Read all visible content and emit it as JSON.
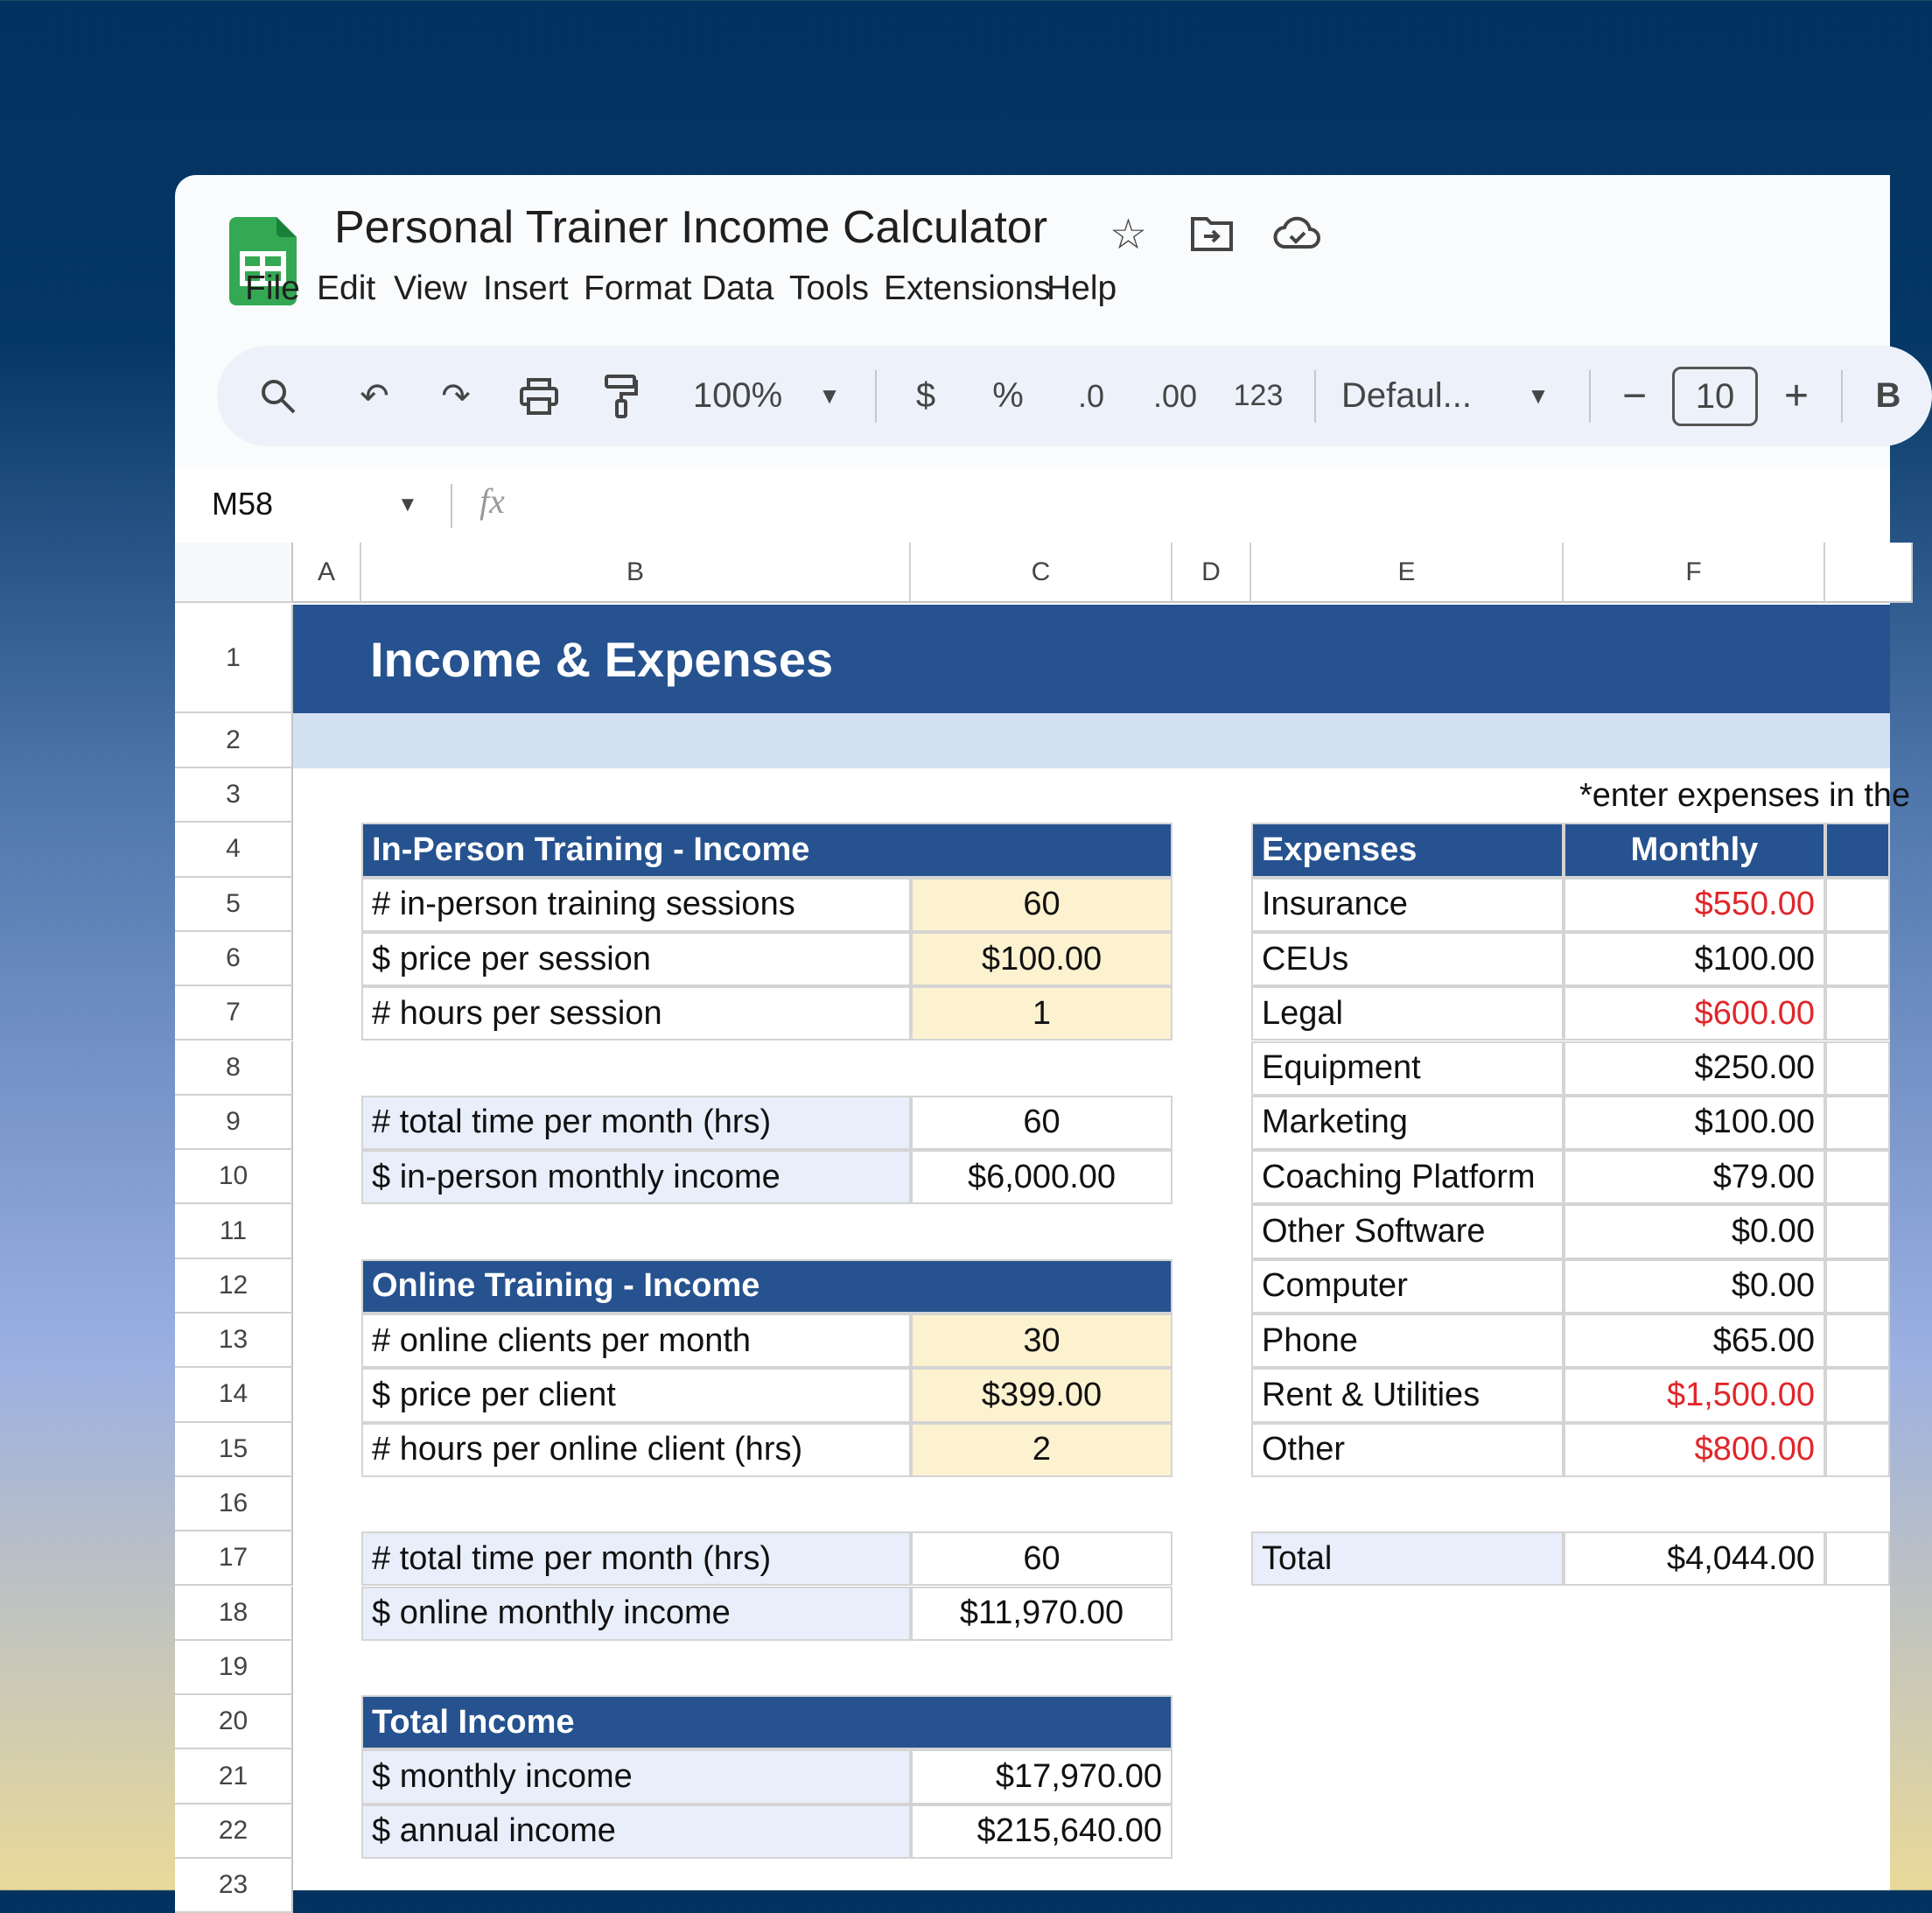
{
  "app": {
    "title": "Personal Trainer Income Calculator",
    "menu": [
      "File",
      "Edit",
      "View",
      "Insert",
      "Format",
      "Data",
      "Tools",
      "Extensions",
      "Help"
    ]
  },
  "toolbar": {
    "zoom": "100%",
    "currency": "$",
    "percent": "%",
    "dec_decrease": ".0",
    "dec_increase": ".00",
    "number_format": "123",
    "font": "Defaul...",
    "font_size": "10",
    "bold": "B"
  },
  "formula_bar": {
    "cell_ref": "M58",
    "fx": "fx",
    "value": ""
  },
  "columns": [
    "A",
    "B",
    "C",
    "D",
    "E",
    "F"
  ],
  "rows": [
    "1",
    "2",
    "3",
    "4",
    "5",
    "6",
    "7",
    "8",
    "9",
    "10",
    "11",
    "12",
    "13",
    "14",
    "15",
    "16",
    "17",
    "18",
    "19",
    "20",
    "21",
    "22",
    "23"
  ],
  "colors": {
    "header": "#26528f",
    "band": "#d3e1f2",
    "input": "#fdf2d0",
    "label": "#e8eefa",
    "negative": "#e0262a"
  },
  "sheet": {
    "title": "Income & Expenses",
    "note": "*enter expenses in the",
    "in_person": {
      "header": "In-Person Training - Income",
      "inputs": [
        {
          "label": "# in-person training sessions",
          "value": "60"
        },
        {
          "label": "$ price per session",
          "value": "$100.00"
        },
        {
          "label": "# hours per session",
          "value": "1"
        }
      ],
      "outputs": [
        {
          "label": "# total time per month (hrs)",
          "value": "60"
        },
        {
          "label": "$ in-person monthly income",
          "value": "$6,000.00"
        }
      ]
    },
    "online": {
      "header": "Online Training - Income",
      "inputs": [
        {
          "label": "# online clients per month",
          "value": "30"
        },
        {
          "label": "$ price per client",
          "value": "$399.00"
        },
        {
          "label": "# hours per online client (hrs)",
          "value": "2"
        }
      ],
      "outputs": [
        {
          "label": "# total time per month (hrs)",
          "value": "60"
        },
        {
          "label": "$ online monthly income",
          "value": "$11,970.00"
        }
      ]
    },
    "total_income": {
      "header": "Total Income",
      "rows": [
        {
          "label": "$ monthly income",
          "value": "$17,970.00"
        },
        {
          "label": "$ annual income",
          "value": "$215,640.00"
        }
      ]
    },
    "expenses": {
      "header": "Expenses",
      "monthly_header": "Monthly",
      "items": [
        {
          "label": "Insurance",
          "value": "$550.00",
          "highlight": true
        },
        {
          "label": "CEUs",
          "value": "$100.00",
          "highlight": false
        },
        {
          "label": "Legal",
          "value": "$600.00",
          "highlight": true
        },
        {
          "label": "Equipment",
          "value": "$250.00",
          "highlight": false
        },
        {
          "label": "Marketing",
          "value": "$100.00",
          "highlight": false
        },
        {
          "label": "Coaching Platform",
          "value": "$79.00",
          "highlight": false
        },
        {
          "label": "Other Software",
          "value": "$0.00",
          "highlight": false
        },
        {
          "label": "Computer",
          "value": "$0.00",
          "highlight": false
        },
        {
          "label": "Phone",
          "value": "$65.00",
          "highlight": false
        },
        {
          "label": "Rent & Utilities",
          "value": "$1,500.00",
          "highlight": true
        },
        {
          "label": "Other",
          "value": "$800.00",
          "highlight": true
        }
      ],
      "total_label": "Total",
      "total_value": "$4,044.00"
    }
  }
}
